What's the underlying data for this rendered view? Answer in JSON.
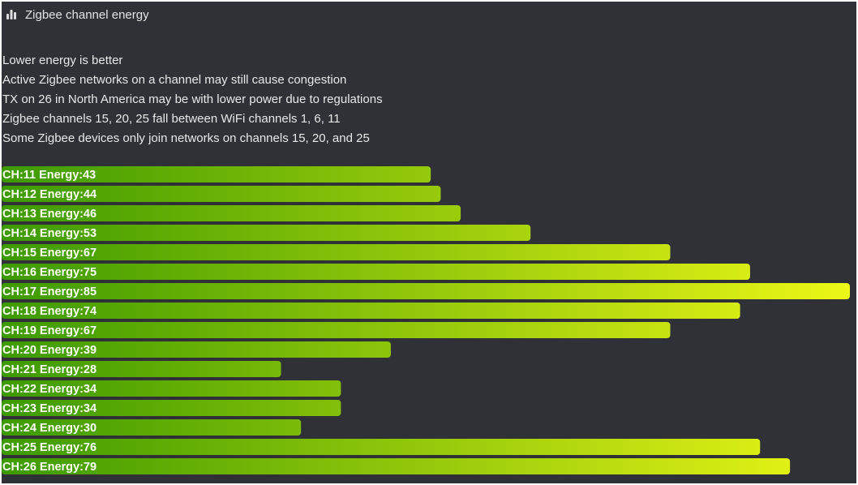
{
  "header": {
    "icon": "bar-chart-icon",
    "title": "Zigbee channel energy"
  },
  "notes": [
    "Lower energy is better",
    "Active Zigbee networks on a channel may still cause congestion",
    "TX on 26 in North America may be with lower power due to regulations",
    "Zigbee channels 15, 20, 25 fall between WiFi channels 1, 6, 11",
    "Some Zigbee devices only join networks on channels 15, 20, and 25"
  ],
  "chart_data": {
    "type": "bar",
    "orientation": "horizontal",
    "categories": [
      "11",
      "12",
      "13",
      "14",
      "15",
      "16",
      "17",
      "18",
      "19",
      "20",
      "21",
      "22",
      "23",
      "24",
      "25",
      "26"
    ],
    "values": [
      43,
      44,
      46,
      53,
      67,
      75,
      85,
      74,
      67,
      39,
      28,
      34,
      34,
      30,
      76,
      79
    ],
    "labels": [
      "CH:11 Energy:43",
      "CH:12 Energy:44",
      "CH:13 Energy:46",
      "CH:14 Energy:53",
      "CH:15 Energy:67",
      "CH:16 Energy:75",
      "CH:17 Energy:85",
      "CH:18 Energy:74",
      "CH:19 Energy:67",
      "CH:20 Energy:39",
      "CH:21 Energy:28",
      "CH:22 Energy:34",
      "CH:23 Energy:34",
      "CH:24 Energy:30",
      "CH:25 Energy:76",
      "CH:26 Energy:79"
    ],
    "xlim": [
      0,
      85
    ],
    "grid": false,
    "legend": "none",
    "gradient": {
      "start": "#3d9a00",
      "end": "#ecf716"
    }
  },
  "colors": {
    "background": "#2f3136",
    "text": "#e8e8e8",
    "bar_label": "#ffffff"
  }
}
